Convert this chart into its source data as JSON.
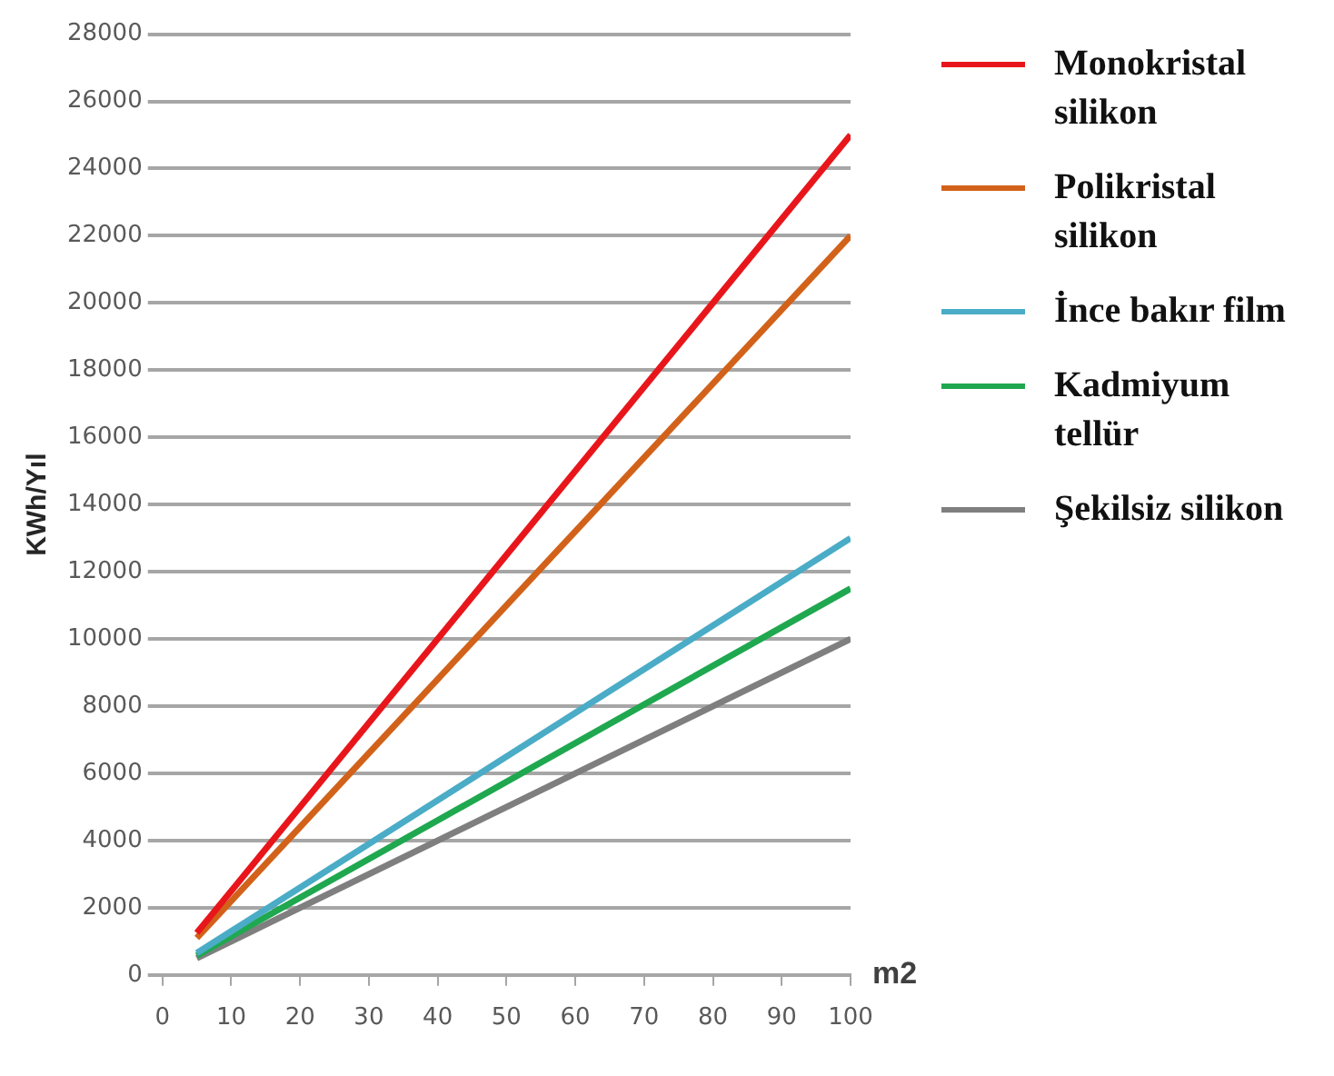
{
  "chart_data": {
    "type": "line",
    "xlabel": "m2",
    "ylabel": "KWh/Yıl",
    "x": [
      5,
      100
    ],
    "xlim": [
      0,
      100
    ],
    "xticks": [
      0,
      10,
      20,
      30,
      40,
      50,
      60,
      70,
      80,
      90,
      100
    ],
    "ylim": [
      0,
      28000
    ],
    "yticks": [
      0,
      2000,
      4000,
      6000,
      8000,
      10000,
      12000,
      14000,
      16000,
      18000,
      20000,
      22000,
      24000,
      26000,
      28000
    ],
    "grid": "y",
    "legend": "right",
    "marker": "none",
    "line_style": "solid",
    "series": [
      {
        "name": "Monokristal silikon",
        "color": "#e8161b",
        "values": [
          1250,
          25000
        ]
      },
      {
        "name": "Polikristal silikon",
        "color": "#d2621a",
        "values": [
          1100,
          22000
        ]
      },
      {
        "name": "İnce bakır film",
        "color": "#4aacc6",
        "values": [
          650,
          13000
        ]
      },
      {
        "name": "Kadmiyum tellür",
        "color": "#1fa84f",
        "values": [
          575,
          11500
        ]
      },
      {
        "name": "Şekilsiz silikon",
        "color": "#7f7f7f",
        "values": [
          500,
          10000
        ]
      }
    ]
  }
}
